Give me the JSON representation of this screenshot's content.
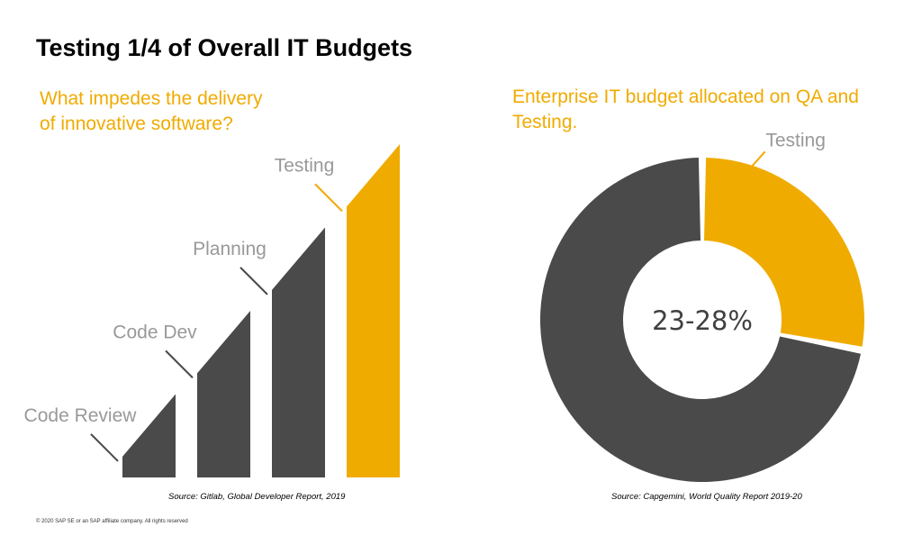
{
  "title": "Testing 1/4 of Overall IT Budgets",
  "chart_data": [
    {
      "type": "bar",
      "title": "What impedes the delivery of innovative software?",
      "title_lines": [
        "What impedes the delivery",
        "of innovative software?"
      ],
      "categories": [
        "Code Review",
        "Code Dev",
        "Planning",
        "Testing"
      ],
      "values": [
        1,
        2,
        3,
        4
      ],
      "colors": [
        "#4a4a4a",
        "#4a4a4a",
        "#4a4a4a",
        "#f0ab00"
      ],
      "label_colors": [
        "#999999",
        "#999999",
        "#999999",
        "#999999"
      ],
      "source": "Source: Gitlab, Global Developer Report, 2019"
    },
    {
      "type": "pie",
      "title": "Enterprise IT budget allocated on QA and Testing.",
      "title_lines": [
        "Enterprise IT budget allocated on QA and",
        "Testing."
      ],
      "slices": [
        {
          "label": "Testing",
          "value": 28,
          "color": "#f0ab00"
        },
        {
          "label": "",
          "value": 72,
          "color": "#4a4a4a"
        }
      ],
      "center_label": "23-28%",
      "source": "Source: Capgemini, World Quality Report 2019-20"
    }
  ],
  "copyright": "© 2020 SAP SE or an SAP affiliate company. All rights reserved"
}
